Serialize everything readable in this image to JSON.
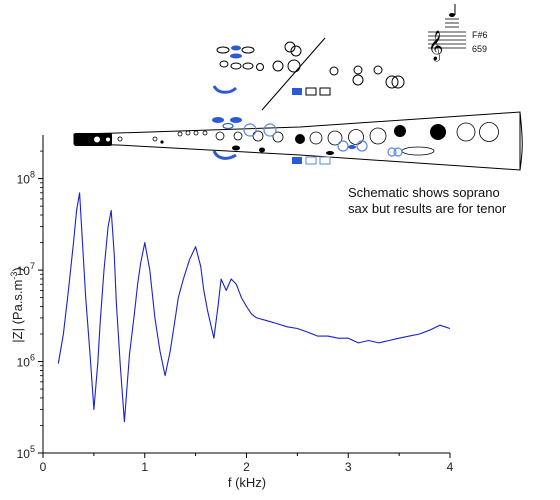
{
  "chart_data": {
    "type": "line",
    "xlabel": "f (kHz)",
    "ylabel_main": "|Z| (Pa.s.m",
    "ylabel_sup": "-3",
    "ylabel_close": ")",
    "xlim": [
      0,
      4
    ],
    "ylim": [
      100000,
      300000000
    ],
    "yscale": "log",
    "x_ticks": [
      0,
      1,
      2,
      3,
      4
    ],
    "x_tick_labels": [
      "0",
      "1",
      "2",
      "3",
      "4"
    ],
    "y_ticks": [
      100000,
      1000000,
      10000000,
      100000000
    ],
    "y_tick_labels": [
      {
        "base": "10",
        "exp": "5"
      },
      {
        "base": "10",
        "exp": "6"
      },
      {
        "base": "10",
        "exp": "7"
      },
      {
        "base": "10",
        "exp": "8"
      }
    ],
    "series": [
      {
        "color": "#1b22c8",
        "x": [
          0.15,
          0.2,
          0.25,
          0.3,
          0.33,
          0.36,
          0.38,
          0.42,
          0.46,
          0.5,
          0.54,
          0.56,
          0.6,
          0.64,
          0.67,
          0.7,
          0.72,
          0.76,
          0.8,
          0.85,
          0.9,
          0.93,
          0.96,
          1.0,
          1.05,
          1.1,
          1.15,
          1.2,
          1.25,
          1.3,
          1.33,
          1.38,
          1.44,
          1.5,
          1.55,
          1.58,
          1.62,
          1.68,
          1.72,
          1.75,
          1.8,
          1.85,
          1.9,
          1.95,
          2.0,
          2.05,
          2.1,
          2.2,
          2.3,
          2.4,
          2.5,
          2.6,
          2.7,
          2.8,
          2.9,
          3.0,
          3.1,
          3.2,
          3.3,
          3.4,
          3.5,
          3.6,
          3.7,
          3.8,
          3.9,
          4.0
        ],
        "y": [
          950000,
          2000000,
          6000000,
          20000000,
          45000000,
          70000000,
          28000000,
          5000000,
          1300000,
          300000,
          1000000,
          2500000,
          10000000,
          30000000,
          45000000,
          15000000,
          4500000,
          900000,
          220000,
          1200000,
          3500000,
          7000000,
          12000000,
          20000000,
          10000000,
          3000000,
          1300000,
          700000,
          1300000,
          3000000,
          5000000,
          8000000,
          13000000,
          18000000,
          11000000,
          6000000,
          3500000,
          1800000,
          4000000,
          8000000,
          6000000,
          8000000,
          7000000,
          5000000,
          4000000,
          3300000,
          3000000,
          2800000,
          2600000,
          2400000,
          2300000,
          2100000,
          1900000,
          1900000,
          1800000,
          1800000,
          1600000,
          1700000,
          1600000,
          1700000,
          1800000,
          1900000,
          2000000,
          2200000,
          2500000,
          2300000
        ]
      }
    ]
  },
  "annotation": {
    "line1": "Schematic shows soprano",
    "line2": "sax but results are for tenor"
  },
  "note_label": "F#6",
  "freq_label": "659"
}
